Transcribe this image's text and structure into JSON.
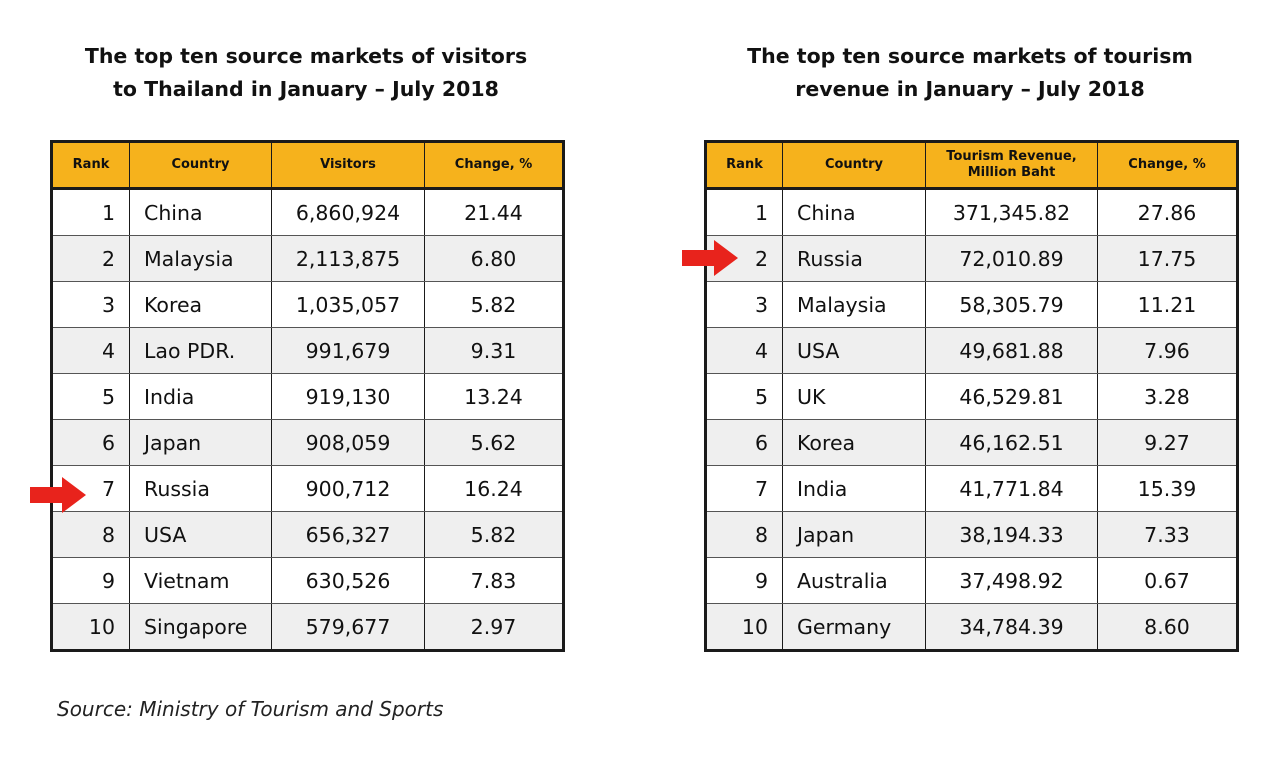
{
  "left_table": {
    "title_line1": "The top ten source markets of visitors",
    "title_line2": "to Thailand in January – July 2018",
    "headers": {
      "rank": "Rank",
      "country": "Country",
      "value": "Visitors",
      "change": "Change, %"
    },
    "rows": [
      {
        "rank": "1",
        "country": "China",
        "value": "6,860,924",
        "change": "21.44"
      },
      {
        "rank": "2",
        "country": "Malaysia",
        "value": "2,113,875",
        "change": "6.80"
      },
      {
        "rank": "3",
        "country": "Korea",
        "value": "1,035,057",
        "change": "5.82"
      },
      {
        "rank": "4",
        "country": "Lao PDR.",
        "value": "991,679",
        "change": "9.31"
      },
      {
        "rank": "5",
        "country": "India",
        "value": "919,130",
        "change": "13.24"
      },
      {
        "rank": "6",
        "country": "Japan",
        "value": "908,059",
        "change": "5.62"
      },
      {
        "rank": "7",
        "country": "Russia",
        "value": "900,712",
        "change": "16.24"
      },
      {
        "rank": "8",
        "country": "USA",
        "value": "656,327",
        "change": "5.82"
      },
      {
        "rank": "9",
        "country": "Vietnam",
        "value": "630,526",
        "change": "7.83"
      },
      {
        "rank": "10",
        "country": "Singapore",
        "value": "579,677",
        "change": "2.97"
      }
    ],
    "highlighted_rank": "7"
  },
  "right_table": {
    "title_line1": "The top ten source markets of tourism",
    "title_line2": "revenue in January – July 2018",
    "headers": {
      "rank": "Rank",
      "country": "Country",
      "value_line1": "Tourism Revenue,",
      "value_line2": "Million Baht",
      "change": "Change, %"
    },
    "rows": [
      {
        "rank": "1",
        "country": "China",
        "value": "371,345.82",
        "change": "27.86"
      },
      {
        "rank": "2",
        "country": "Russia",
        "value": "72,010.89",
        "change": "17.75"
      },
      {
        "rank": "3",
        "country": "Malaysia",
        "value": "58,305.79",
        "change": "11.21"
      },
      {
        "rank": "4",
        "country": "USA",
        "value": "49,681.88",
        "change": "7.96"
      },
      {
        "rank": "5",
        "country": "UK",
        "value": "46,529.81",
        "change": "3.28"
      },
      {
        "rank": "6",
        "country": "Korea",
        "value": "46,162.51",
        "change": "9.27"
      },
      {
        "rank": "7",
        "country": "India",
        "value": "41,771.84",
        "change": "15.39"
      },
      {
        "rank": "8",
        "country": "Japan",
        "value": "38,194.33",
        "change": "7.33"
      },
      {
        "rank": "9",
        "country": "Australia",
        "value": "37,498.92",
        "change": "0.67"
      },
      {
        "rank": "10",
        "country": "Germany",
        "value": "34,784.39",
        "change": "8.60"
      }
    ],
    "highlighted_rank": "2"
  },
  "source": "Source: Ministry of Tourism and Sports",
  "colors": {
    "header_fill": "#f6b21c",
    "arrow": "#e8231c",
    "alt_row": "#efefef",
    "border": "#1a1a1a"
  },
  "icons": {
    "highlight_marker": "red-right-arrow-icon"
  }
}
